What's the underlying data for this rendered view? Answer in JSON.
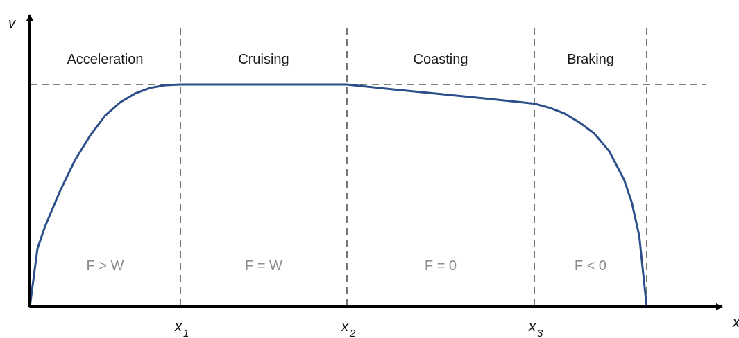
{
  "chart_data": {
    "type": "line",
    "title": "",
    "xlabel": "x",
    "ylabel": "v",
    "grid": false,
    "x_markers": [
      {
        "main": "x",
        "sub": "1"
      },
      {
        "main": "x",
        "sub": "2"
      },
      {
        "main": "x",
        "sub": "3"
      }
    ],
    "phases": [
      {
        "label": "Acceleration",
        "force": "F > W"
      },
      {
        "label": "Cruising",
        "force": "F = W"
      },
      {
        "label": "Coasting",
        "force": "F = 0"
      },
      {
        "label": "Braking",
        "force": "F < 0"
      }
    ],
    "series": [
      {
        "color": "#2c4f8a",
        "x": [
          0,
          0.05,
          0.1,
          0.2,
          0.3,
          0.4,
          0.5,
          0.6,
          0.7,
          0.8,
          0.9,
          1,
          2,
          2.25,
          2.5,
          2.75,
          3,
          3.1,
          3.2,
          3.3,
          3.4,
          3.5,
          3.6,
          3.65,
          3.7,
          3.75
        ],
        "y": [
          0,
          0.26,
          0.36,
          0.52,
          0.66,
          0.77,
          0.86,
          0.92,
          0.96,
          0.985,
          0.997,
          1,
          1,
          0.978,
          0.957,
          0.936,
          0.914,
          0.896,
          0.87,
          0.83,
          0.78,
          0.7,
          0.57,
          0.47,
          0.32,
          0
        ]
      }
    ],
    "colors": {
      "curve": "#2c4f8a",
      "guides": "#555555",
      "axes": "#000000"
    }
  }
}
